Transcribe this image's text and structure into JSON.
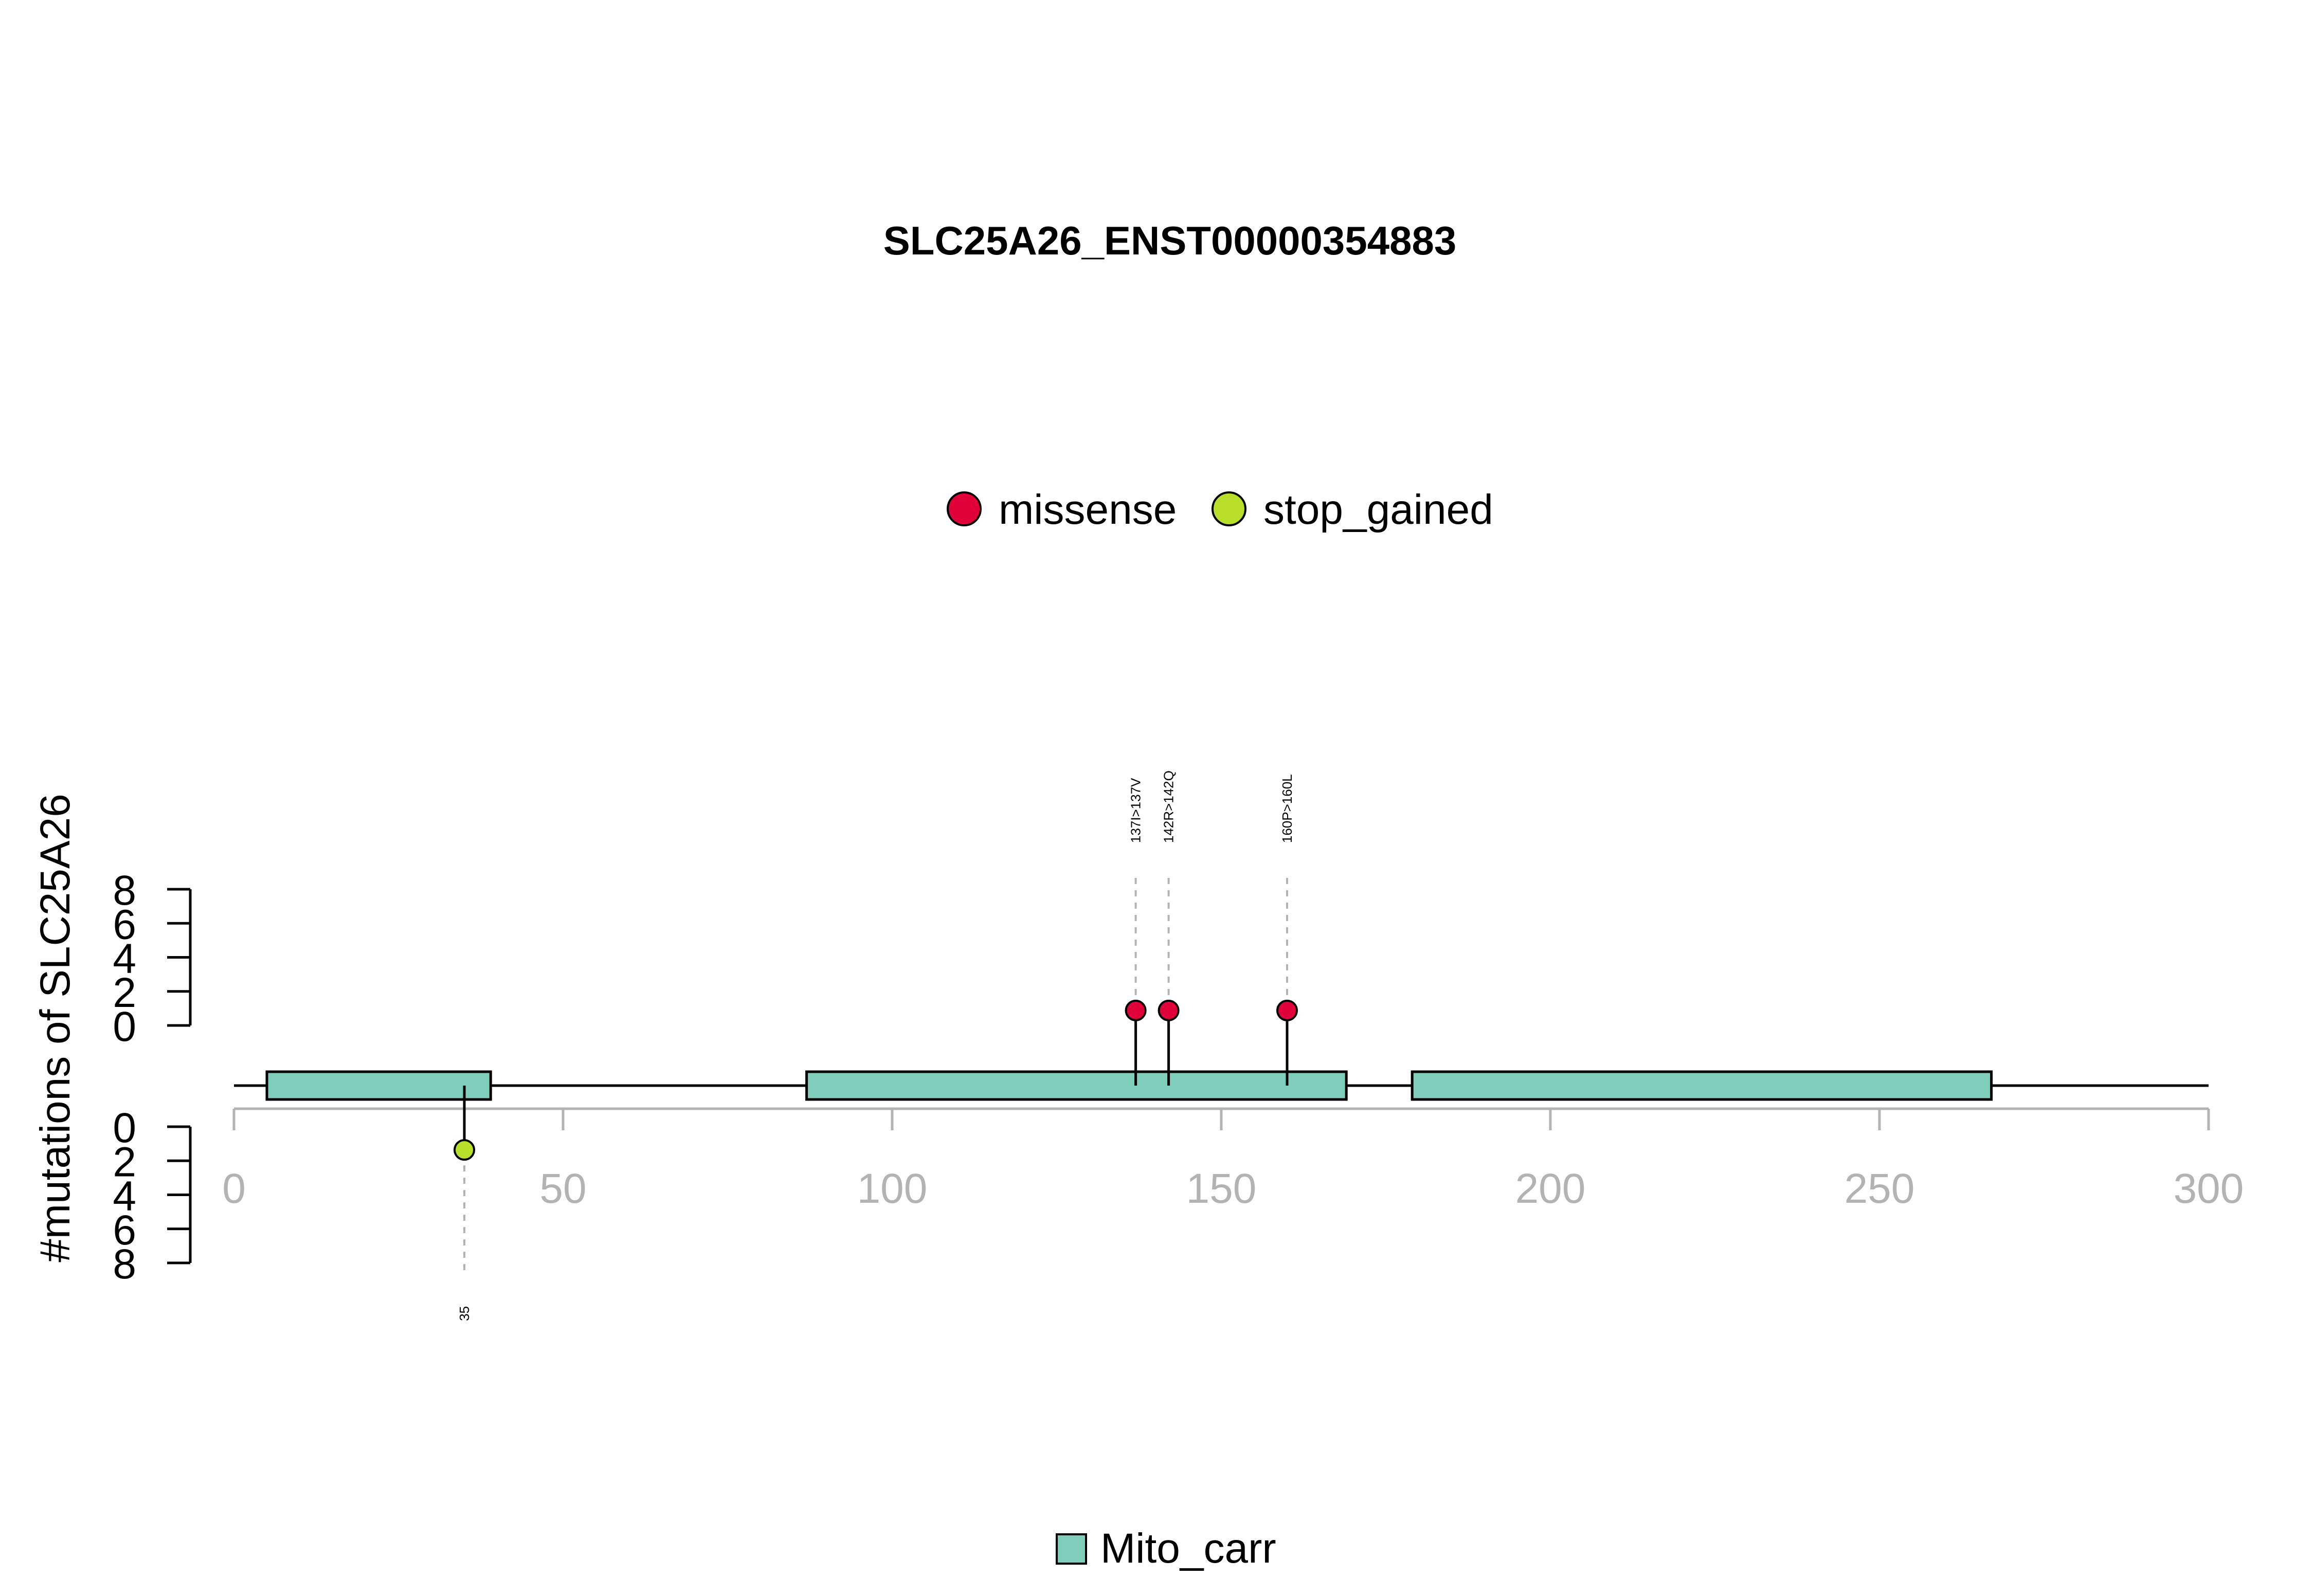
{
  "chart_data": {
    "type": "lollipop",
    "title": "SLC25A26_ENST00000354883",
    "ylabel": "#mutations of SLC25A26",
    "xlim": [
      0,
      300
    ],
    "x_ticks": [
      0,
      50,
      100,
      150,
      200,
      250,
      300
    ],
    "y_ticks_upper": [
      0,
      2,
      4,
      6,
      8
    ],
    "y_ticks_lower": [
      0,
      2,
      4,
      6,
      8
    ],
    "ylim": [
      0,
      8
    ],
    "colors": {
      "missense": "#e0003a",
      "stop_gained": "#b8e02a",
      "domain": "#7fcdbb",
      "axis": "#b3b3b3"
    },
    "legend": [
      {
        "label": "missense",
        "color": "#e0003a"
      },
      {
        "label": "stop_gained",
        "color": "#b8e02a"
      }
    ],
    "domain_legend": [
      {
        "label": "Mito_carr",
        "color": "#7fcdbb"
      }
    ],
    "domains": [
      {
        "name": "Mito_carr",
        "start": 5,
        "end": 39
      },
      {
        "name": "Mito_carr",
        "start": 87,
        "end": 169
      },
      {
        "name": "Mito_carr",
        "start": 179,
        "end": 267
      }
    ],
    "mutations_above": [
      {
        "position": 137,
        "label": "137I>137V",
        "count": 1,
        "type": "missense"
      },
      {
        "position": 142,
        "label": "142R>142Q",
        "count": 1,
        "type": "missense"
      },
      {
        "position": 160,
        "label": "160P>160L",
        "count": 1,
        "type": "missense"
      }
    ],
    "mutations_below": [
      {
        "position": 35,
        "label": "35",
        "count": 1,
        "type": "stop_gained"
      }
    ]
  }
}
